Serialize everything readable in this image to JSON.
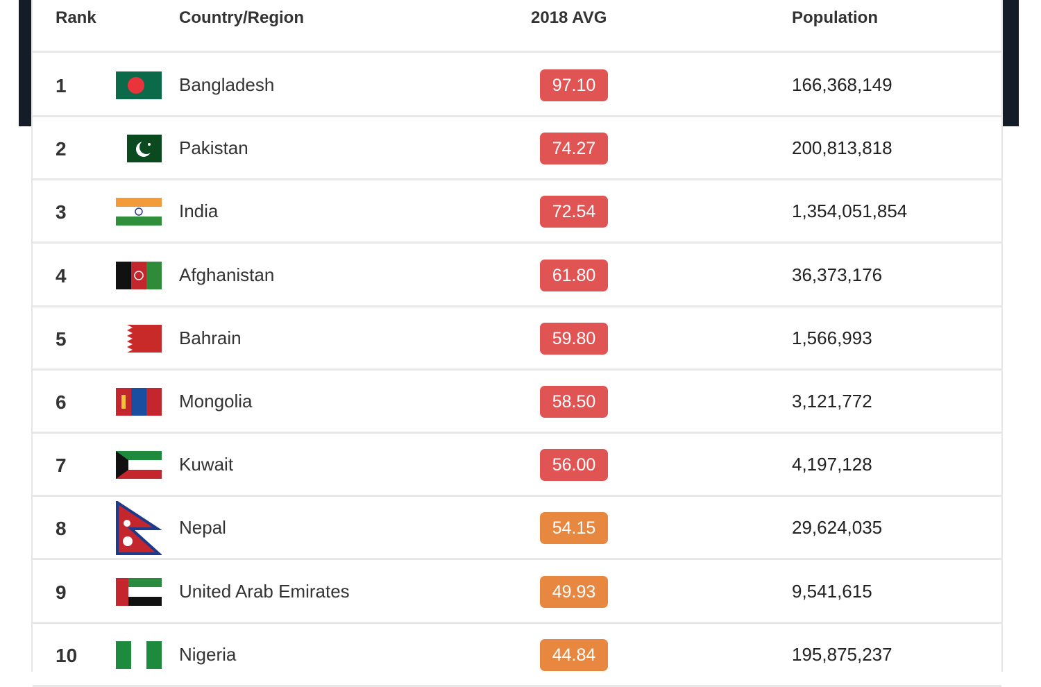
{
  "headers": {
    "rank": "Rank",
    "country": "Country/Region",
    "avg": "2018 AVG",
    "population": "Population"
  },
  "colors": {
    "high": "#e05454",
    "medium": "#e8873f",
    "frame": "#141c28"
  },
  "rows": [
    {
      "rank": "1",
      "country": "Bangladesh",
      "flag": "bangladesh-flag-icon",
      "avg": "97.10",
      "level": "high",
      "population": "166,368,149"
    },
    {
      "rank": "2",
      "country": "Pakistan",
      "flag": "pakistan-flag-icon",
      "avg": "74.27",
      "level": "high",
      "population": "200,813,818"
    },
    {
      "rank": "3",
      "country": "India",
      "flag": "india-flag-icon",
      "avg": "72.54",
      "level": "high",
      "population": "1,354,051,854"
    },
    {
      "rank": "4",
      "country": "Afghanistan",
      "flag": "afghanistan-flag-icon",
      "avg": "61.80",
      "level": "high",
      "population": "36,373,176"
    },
    {
      "rank": "5",
      "country": "Bahrain",
      "flag": "bahrain-flag-icon",
      "avg": "59.80",
      "level": "high",
      "population": "1,566,993"
    },
    {
      "rank": "6",
      "country": "Mongolia",
      "flag": "mongolia-flag-icon",
      "avg": "58.50",
      "level": "high",
      "population": "3,121,772"
    },
    {
      "rank": "7",
      "country": "Kuwait",
      "flag": "kuwait-flag-icon",
      "avg": "56.00",
      "level": "high",
      "population": "4,197,128"
    },
    {
      "rank": "8",
      "country": "Nepal",
      "flag": "nepal-flag-icon",
      "avg": "54.15",
      "level": "medium",
      "population": "29,624,035"
    },
    {
      "rank": "9",
      "country": "United Arab Emirates",
      "flag": "uae-flag-icon",
      "avg": "49.93",
      "level": "medium",
      "population": "9,541,615"
    },
    {
      "rank": "10",
      "country": "Nigeria",
      "flag": "nigeria-flag-icon",
      "avg": "44.84",
      "level": "medium",
      "population": "195,875,237"
    }
  ]
}
